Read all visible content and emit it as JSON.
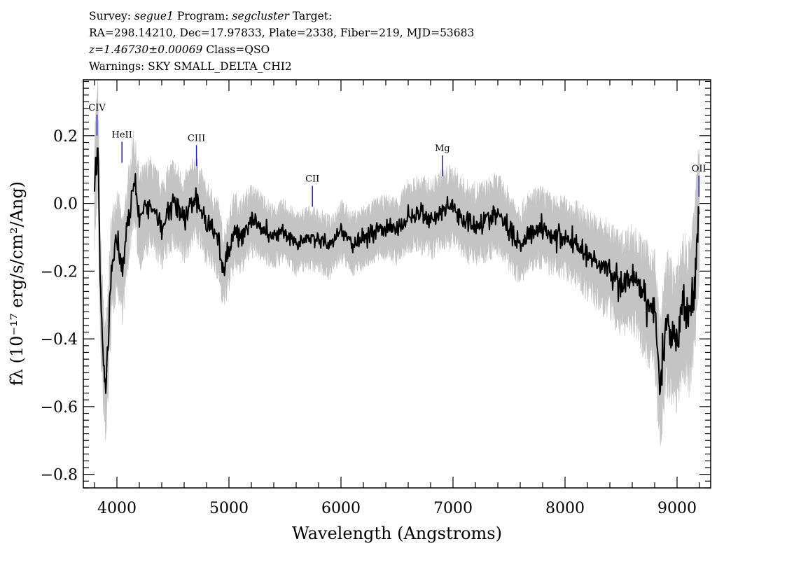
{
  "header": {
    "survey_label": "Survey:",
    "survey": "segue1",
    "program_label": "Program:",
    "program": "segcluster",
    "target_label": "Target:",
    "coords": "RA=298.14210, Dec=17.97833, Plate=2338, Fiber=219, MJD=53683",
    "redshift": "z=1.46730±0.00069",
    "class": "Class=QSO",
    "warnings": "Warnings: SKY SMALL_DELTA_CHI2"
  },
  "chart_data": {
    "type": "line",
    "xlabel": "Wavelength (Angstroms)",
    "ylabel": "fλ (10⁻¹⁷ erg/s/cm²/Ang)",
    "xlim": [
      3700,
      9300
    ],
    "ylim": [
      -0.84,
      0.365
    ],
    "x_ticks": [
      4000,
      5000,
      6000,
      7000,
      8000,
      9000
    ],
    "y_ticks": [
      -0.8,
      -0.6,
      -0.4,
      -0.2,
      0.0,
      0.2
    ],
    "y_tick_labels": [
      "−0.8",
      "−0.6",
      "−0.4",
      "−0.2",
      "0.0",
      "0.2"
    ],
    "grid": false,
    "colors": {
      "flux": "#000000",
      "error": "#c4c4c4",
      "line_marker": "#1c1cc8"
    },
    "series": [
      {
        "role": "flux",
        "x": [
          3800,
          3830,
          3850,
          3880,
          3900,
          3950,
          4000,
          4050,
          4100,
          4150,
          4200,
          4300,
          4400,
          4500,
          4600,
          4700,
          4800,
          4900,
          4950,
          5000,
          5050,
          5100,
          5200,
          5300,
          5400,
          5500,
          5600,
          5700,
          5800,
          5900,
          6000,
          6100,
          6200,
          6300,
          6400,
          6500,
          6600,
          6700,
          6800,
          6900,
          6950,
          7000,
          7100,
          7200,
          7300,
          7400,
          7500,
          7600,
          7700,
          7800,
          7900,
          8000,
          8100,
          8200,
          8300,
          8400,
          8500,
          8600,
          8700,
          8800,
          8850,
          8900,
          9000,
          9050,
          9100,
          9150,
          9200
        ],
        "values": [
          0.05,
          0.19,
          -0.25,
          -0.45,
          -0.55,
          -0.2,
          -0.1,
          -0.2,
          -0.05,
          0.08,
          -0.05,
          0.0,
          -0.06,
          0.0,
          -0.05,
          0.02,
          -0.06,
          -0.1,
          -0.2,
          -0.14,
          -0.08,
          -0.1,
          -0.05,
          -0.07,
          -0.1,
          -0.08,
          -0.12,
          -0.1,
          -0.11,
          -0.13,
          -0.08,
          -0.12,
          -0.1,
          -0.08,
          -0.07,
          -0.08,
          -0.04,
          -0.03,
          -0.05,
          -0.02,
          -0.01,
          -0.01,
          -0.05,
          -0.06,
          -0.05,
          -0.03,
          -0.08,
          -0.12,
          -0.08,
          -0.07,
          -0.1,
          -0.1,
          -0.12,
          -0.15,
          -0.18,
          -0.2,
          -0.24,
          -0.22,
          -0.28,
          -0.32,
          -0.55,
          -0.35,
          -0.4,
          -0.3,
          -0.35,
          -0.25,
          0.0
        ]
      },
      {
        "role": "error",
        "x": [
          3800,
          3850,
          3900,
          4000,
          4100,
          4200,
          4400,
          4600,
          4800,
          5000,
          5200,
          5400,
          5600,
          5800,
          6000,
          6200,
          6400,
          6600,
          6800,
          7000,
          7200,
          7400,
          7600,
          7800,
          8000,
          8200,
          8400,
          8600,
          8800,
          8900,
          9000,
          9100,
          9200
        ],
        "values": [
          0.14,
          0.14,
          0.14,
          0.12,
          0.11,
          0.11,
          0.1,
          0.1,
          0.09,
          0.09,
          0.08,
          0.07,
          0.07,
          0.07,
          0.07,
          0.07,
          0.07,
          0.08,
          0.09,
          0.09,
          0.09,
          0.09,
          0.09,
          0.09,
          0.09,
          0.1,
          0.11,
          0.12,
          0.14,
          0.16,
          0.16,
          0.17,
          0.18
        ]
      }
    ],
    "lines": [
      {
        "label": "CIV",
        "x": 3822,
        "y": 0.2
      },
      {
        "label": "HeII",
        "x": 4045,
        "y": 0.12
      },
      {
        "label": "CIII",
        "x": 4710,
        "y": 0.11
      },
      {
        "label": "CII",
        "x": 5745,
        "y": -0.01
      },
      {
        "label": "Mg",
        "x": 6905,
        "y": 0.08
      },
      {
        "label": "OII",
        "x": 9195,
        "y": 0.02
      }
    ]
  }
}
